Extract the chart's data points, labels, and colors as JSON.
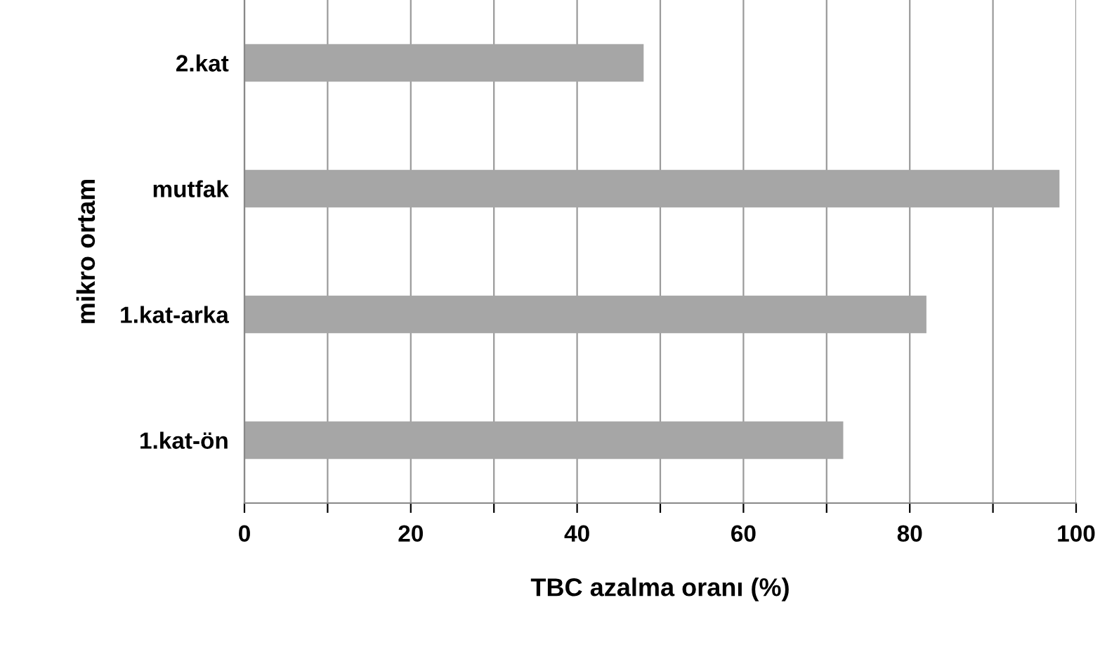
{
  "chart_data": {
    "type": "bar",
    "orientation": "horizontal",
    "xlabel": "TBC azalma oranı (%)",
    "ylabel": "mikro ortam",
    "categories": [
      "2.kat",
      "mutfak",
      "1.kat-arka",
      "1.kat-ön"
    ],
    "values": [
      48,
      98,
      82,
      72
    ],
    "color": "#a6a6a6",
    "xlim": [
      0,
      100
    ],
    "xticks": [
      0,
      {
        "value": 10,
        "label": null
      },
      20,
      {
        "value": 30,
        "label": null
      },
      40,
      {
        "value": 50,
        "label": null
      },
      60,
      {
        "value": 70,
        "label": null
      },
      80,
      {
        "value": 90,
        "label": null
      },
      100
    ],
    "grid": "x"
  }
}
